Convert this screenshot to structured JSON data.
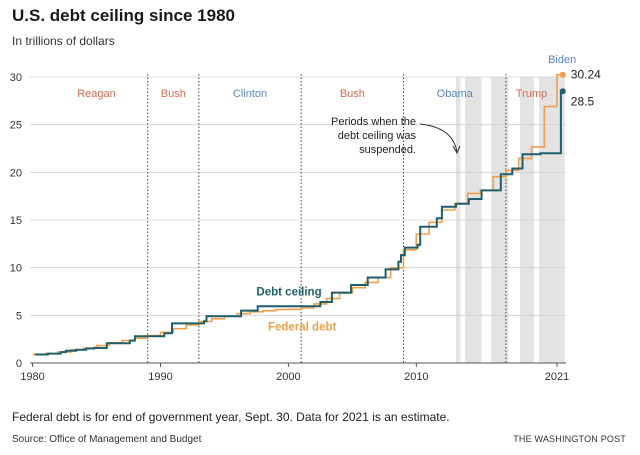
{
  "header": {
    "title": "U.S. debt ceiling since 1980",
    "subtitle": "In trillions of dollars"
  },
  "footer": {
    "note": "Federal debt is for end of government year, Sept. 30. Data for 2021 is an estimate.",
    "source": "Source: Office of Management and Budget",
    "publisher": "THE WASHINGTON POST"
  },
  "colors": {
    "debt_ceiling": "#1f5f6b",
    "federal_debt": "#f0a04b",
    "republican": "#d9694f",
    "democrat": "#5b86c4",
    "suspension_band": "#e3e3e3",
    "biden": "#5b86c4"
  },
  "chart_data": {
    "type": "line",
    "title": "U.S. debt ceiling since 1980",
    "subtitle": "In trillions of dollars",
    "xlabel": "",
    "ylabel": "",
    "xlim": [
      1979.8,
      2021.7
    ],
    "ylim": [
      0,
      30
    ],
    "x_ticks": [
      1980,
      1990,
      2000,
      2010,
      2021
    ],
    "y_ticks": [
      0,
      5,
      10,
      15,
      20,
      25,
      30
    ],
    "grid": "horizontal",
    "series": [
      {
        "name": "Debt ceiling",
        "color": "#1f5f6b",
        "step": true,
        "points": [
          [
            1980.2,
            0.89
          ],
          [
            1981.2,
            0.99
          ],
          [
            1982.2,
            1.14
          ],
          [
            1982.6,
            1.29
          ],
          [
            1983.4,
            1.39
          ],
          [
            1984.2,
            1.52
          ],
          [
            1984.8,
            1.57
          ],
          [
            1985.8,
            2.08
          ],
          [
            1987.6,
            2.35
          ],
          [
            1988.0,
            2.8
          ],
          [
            1990.3,
            3.12
          ],
          [
            1990.9,
            4.15
          ],
          [
            1993.4,
            4.37
          ],
          [
            1993.6,
            4.9
          ],
          [
            1996.3,
            5.5
          ],
          [
            1997.6,
            5.95
          ],
          [
            2002.5,
            6.4
          ],
          [
            2003.4,
            7.38
          ],
          [
            2004.9,
            8.18
          ],
          [
            2006.2,
            8.97
          ],
          [
            2007.6,
            9.82
          ],
          [
            2008.6,
            10.62
          ],
          [
            2008.8,
            11.32
          ],
          [
            2009.1,
            12.1
          ],
          [
            2010.1,
            12.4
          ],
          [
            2010.3,
            14.29
          ],
          [
            2011.6,
            15.19
          ],
          [
            2012.0,
            16.39
          ],
          [
            2013.1,
            16.7
          ],
          [
            2014.1,
            17.2
          ],
          [
            2015.1,
            18.1
          ],
          [
            2016.6,
            19.8
          ],
          [
            2017.5,
            20.4
          ],
          [
            2018.3,
            21.9
          ],
          [
            2019.7,
            22.0
          ],
          [
            2021.3,
            28.4
          ],
          [
            2021.45,
            28.5
          ]
        ],
        "end_label": "28.5"
      },
      {
        "name": "Federal debt",
        "color": "#f0a04b",
        "step": true,
        "points": [
          [
            1980,
            0.91
          ],
          [
            1981,
            1.0
          ],
          [
            1982,
            1.14
          ],
          [
            1983,
            1.38
          ],
          [
            1984,
            1.57
          ],
          [
            1985,
            1.82
          ],
          [
            1986,
            2.13
          ],
          [
            1987,
            2.35
          ],
          [
            1988,
            2.6
          ],
          [
            1989,
            2.87
          ],
          [
            1990,
            3.21
          ],
          [
            1991,
            3.6
          ],
          [
            1992,
            4.0
          ],
          [
            1993,
            4.35
          ],
          [
            1994,
            4.64
          ],
          [
            1995,
            4.92
          ],
          [
            1996,
            5.18
          ],
          [
            1997,
            5.37
          ],
          [
            1998,
            5.48
          ],
          [
            1999,
            5.6
          ],
          [
            2000,
            5.63
          ],
          [
            2001,
            5.77
          ],
          [
            2002,
            6.2
          ],
          [
            2003,
            6.76
          ],
          [
            2004,
            7.35
          ],
          [
            2005,
            7.9
          ],
          [
            2006,
            8.45
          ],
          [
            2007,
            8.95
          ],
          [
            2008,
            9.99
          ],
          [
            2009,
            11.87
          ],
          [
            2010,
            13.53
          ],
          [
            2011,
            14.76
          ],
          [
            2012,
            16.05
          ],
          [
            2013,
            16.72
          ],
          [
            2014,
            17.79
          ],
          [
            2015,
            18.12
          ],
          [
            2016,
            19.54
          ],
          [
            2017,
            20.21
          ],
          [
            2018,
            21.46
          ],
          [
            2019,
            22.67
          ],
          [
            2020,
            26.9
          ],
          [
            2021,
            30.24
          ],
          [
            2021.45,
            30.24
          ]
        ],
        "end_label": "30.24"
      }
    ],
    "suspension_periods": [
      [
        2013.1,
        2013.45
      ],
      [
        2013.8,
        2015.1
      ],
      [
        2015.85,
        2017.2
      ],
      [
        2018.1,
        2019.2
      ],
      [
        2019.6,
        2021.6
      ]
    ],
    "administrations": [
      {
        "name": "Reagan",
        "party": "R",
        "start": 1981.0,
        "end": 1989.0
      },
      {
        "name": "Bush",
        "party": "R",
        "start": 1989.0,
        "end": 1993.0
      },
      {
        "name": "Clinton",
        "party": "D",
        "start": 1993.0,
        "end": 2001.0
      },
      {
        "name": "Bush",
        "party": "R",
        "start": 2001.0,
        "end": 2009.0
      },
      {
        "name": "Obama",
        "party": "D",
        "start": 2009.0,
        "end": 2017.0
      },
      {
        "name": "Trump",
        "party": "R",
        "start": 2017.0,
        "end": 2021.0
      },
      {
        "name": "Biden",
        "party": "D",
        "start": 2021.0,
        "end": 2021.6
      }
    ],
    "term_divider_years": [
      1989.0,
      1993.0,
      2001.0,
      2009.0,
      2017.0
    ],
    "series_labels": [
      "Debt ceiling",
      "Federal debt"
    ],
    "annotations": [
      {
        "text": "Periods when the debt ceiling was suspended.",
        "lines": [
          "Periods when the",
          "debt ceiling was",
          "suspended."
        ]
      }
    ]
  }
}
